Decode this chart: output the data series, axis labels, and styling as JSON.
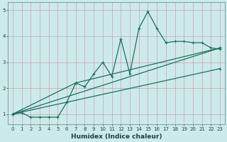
{
  "xlabel": "Humidex (Indice chaleur)",
  "xlim": [
    -0.5,
    23.5
  ],
  "ylim": [
    0.6,
    5.3
  ],
  "yticks": [
    1,
    2,
    3,
    4,
    5
  ],
  "xticks": [
    0,
    1,
    2,
    3,
    4,
    5,
    6,
    7,
    8,
    9,
    10,
    11,
    12,
    13,
    14,
    15,
    16,
    17,
    18,
    19,
    20,
    21,
    22,
    23
  ],
  "bg_color": "#cdeaea",
  "grid_color": "#c8a0a8",
  "line_color": "#1a7060",
  "line_main": {
    "x": [
      0,
      1,
      2,
      3,
      4,
      5,
      6,
      7,
      8,
      9,
      10,
      11,
      12,
      13,
      14,
      15,
      16,
      17,
      18,
      19,
      20,
      21,
      22,
      23
    ],
    "y": [
      1.0,
      1.05,
      0.88,
      0.88,
      0.88,
      0.88,
      1.45,
      2.2,
      2.05,
      2.55,
      3.0,
      2.45,
      3.9,
      2.55,
      4.3,
      4.95,
      4.3,
      3.75,
      3.8,
      3.8,
      3.75,
      3.75,
      3.55,
      3.5
    ]
  },
  "line_upper": {
    "x": [
      0,
      23
    ],
    "y": [
      1.0,
      3.55
    ]
  },
  "line_lower": {
    "x": [
      0,
      23
    ],
    "y": [
      1.0,
      2.75
    ]
  },
  "line_mid": {
    "x": [
      0,
      7,
      23
    ],
    "y": [
      1.0,
      2.2,
      3.55
    ]
  }
}
